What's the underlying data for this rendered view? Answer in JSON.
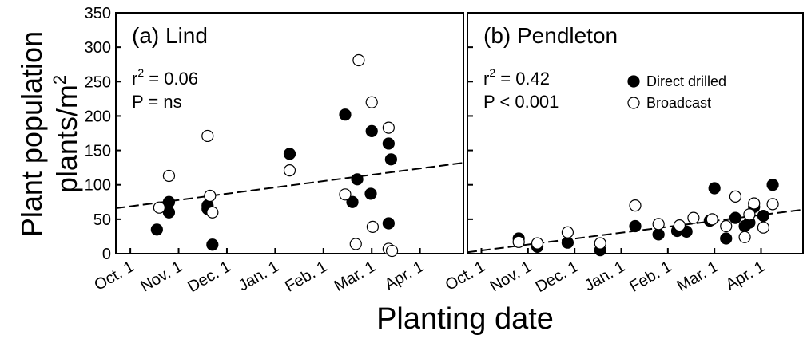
{
  "figure": {
    "ylabel_line1": "Plant population",
    "ylabel_line2_base": "plants/m",
    "ylabel_line2_sup": "2",
    "xlabel": "Planting date"
  },
  "chart_data": [
    {
      "type": "scatter",
      "title": "(a)  Lind",
      "stats": {
        "r_squared_prefix": "r",
        "r_squared_sup": "2",
        "r_squared_value": " = 0.06",
        "p_text": "P = ns"
      },
      "xlabel": "Planting date",
      "ylabel": "Plant population plants/m2",
      "x_ticks": [
        "Oct. 1",
        "Nov. 1",
        "Dec. 1",
        "Jan. 1",
        "Feb. 1",
        "Mar. 1",
        "Apr. 1"
      ],
      "x_tick_values": [
        0,
        1,
        2,
        3,
        4,
        5,
        6
      ],
      "xlim": [
        -0.3,
        6.9
      ],
      "ylim": [
        0,
        350
      ],
      "y_ticks": [
        0,
        50,
        100,
        150,
        200,
        250,
        300,
        350
      ],
      "series": [
        {
          "name": "Direct drilled",
          "marker": "filled",
          "points": [
            {
              "x": 0.55,
              "y": 35
            },
            {
              "x": 0.8,
              "y": 60
            },
            {
              "x": 0.8,
              "y": 75
            },
            {
              "x": 1.6,
              "y": 70
            },
            {
              "x": 1.6,
              "y": 65
            },
            {
              "x": 1.7,
              "y": 13
            },
            {
              "x": 3.3,
              "y": 145
            },
            {
              "x": 4.45,
              "y": 202
            },
            {
              "x": 4.6,
              "y": 75
            },
            {
              "x": 4.7,
              "y": 108
            },
            {
              "x": 5.0,
              "y": 178
            },
            {
              "x": 4.98,
              "y": 87
            },
            {
              "x": 5.35,
              "y": 160
            },
            {
              "x": 5.35,
              "y": 44
            },
            {
              "x": 5.4,
              "y": 137
            }
          ]
        },
        {
          "name": "Broadcast",
          "marker": "open",
          "points": [
            {
              "x": 0.6,
              "y": 67
            },
            {
              "x": 0.8,
              "y": 113
            },
            {
              "x": 1.6,
              "y": 171
            },
            {
              "x": 1.65,
              "y": 84
            },
            {
              "x": 1.7,
              "y": 60
            },
            {
              "x": 3.3,
              "y": 121
            },
            {
              "x": 4.45,
              "y": 86
            },
            {
              "x": 4.67,
              "y": 14
            },
            {
              "x": 4.73,
              "y": 281
            },
            {
              "x": 5.0,
              "y": 220
            },
            {
              "x": 5.02,
              "y": 39
            },
            {
              "x": 5.35,
              "y": 183
            },
            {
              "x": 5.35,
              "y": 7
            },
            {
              "x": 5.42,
              "y": 4
            }
          ]
        }
      ],
      "regression_line": {
        "x": [
          -0.3,
          6.9
        ],
        "y": [
          66,
          132
        ]
      }
    },
    {
      "type": "scatter",
      "title": "(b)  Pendleton",
      "stats": {
        "r_squared_prefix": "r",
        "r_squared_sup": "2",
        "r_squared_value": " = 0.42",
        "p_text": "P < 0.001"
      },
      "xlabel": "Planting date",
      "ylabel": "Plant population plants/m2",
      "x_ticks": [
        "Oct. 1",
        "Nov. 1",
        "Dec. 1",
        "Jan. 1",
        "Feb. 1",
        "Mar. 1",
        "Apr. 1"
      ],
      "x_tick_values": [
        0,
        1,
        2,
        3,
        4,
        5,
        6
      ],
      "xlim": [
        -0.3,
        6.9
      ],
      "ylim": [
        0,
        350
      ],
      "legend": {
        "position": "top-right",
        "entries": [
          "Direct drilled",
          "Broadcast"
        ]
      },
      "series": [
        {
          "name": "Direct drilled",
          "marker": "filled",
          "points": [
            {
              "x": 0.8,
              "y": 22
            },
            {
              "x": 1.2,
              "y": 10
            },
            {
              "x": 1.85,
              "y": 16
            },
            {
              "x": 2.55,
              "y": 5
            },
            {
              "x": 3.3,
              "y": 40
            },
            {
              "x": 3.8,
              "y": 28
            },
            {
              "x": 4.2,
              "y": 33
            },
            {
              "x": 4.25,
              "y": 38
            },
            {
              "x": 4.4,
              "y": 32
            },
            {
              "x": 4.9,
              "y": 48
            },
            {
              "x": 5.0,
              "y": 95
            },
            {
              "x": 5.25,
              "y": 22
            },
            {
              "x": 5.45,
              "y": 52
            },
            {
              "x": 5.65,
              "y": 40
            },
            {
              "x": 5.75,
              "y": 45
            },
            {
              "x": 5.85,
              "y": 68
            },
            {
              "x": 6.05,
              "y": 55
            },
            {
              "x": 6.25,
              "y": 100
            }
          ]
        },
        {
          "name": "Broadcast",
          "marker": "open",
          "points": [
            {
              "x": 0.8,
              "y": 17
            },
            {
              "x": 1.2,
              "y": 15
            },
            {
              "x": 1.85,
              "y": 31
            },
            {
              "x": 2.55,
              "y": 15
            },
            {
              "x": 3.3,
              "y": 70
            },
            {
              "x": 3.8,
              "y": 43
            },
            {
              "x": 4.25,
              "y": 41
            },
            {
              "x": 4.55,
              "y": 52
            },
            {
              "x": 4.95,
              "y": 50
            },
            {
              "x": 5.25,
              "y": 40
            },
            {
              "x": 5.45,
              "y": 83
            },
            {
              "x": 5.65,
              "y": 24
            },
            {
              "x": 5.75,
              "y": 57
            },
            {
              "x": 5.85,
              "y": 73
            },
            {
              "x": 6.05,
              "y": 38
            },
            {
              "x": 6.25,
              "y": 72
            }
          ]
        }
      ],
      "regression_line": {
        "x": [
          -0.3,
          6.9
        ],
        "y": [
          2,
          64
        ]
      }
    }
  ]
}
